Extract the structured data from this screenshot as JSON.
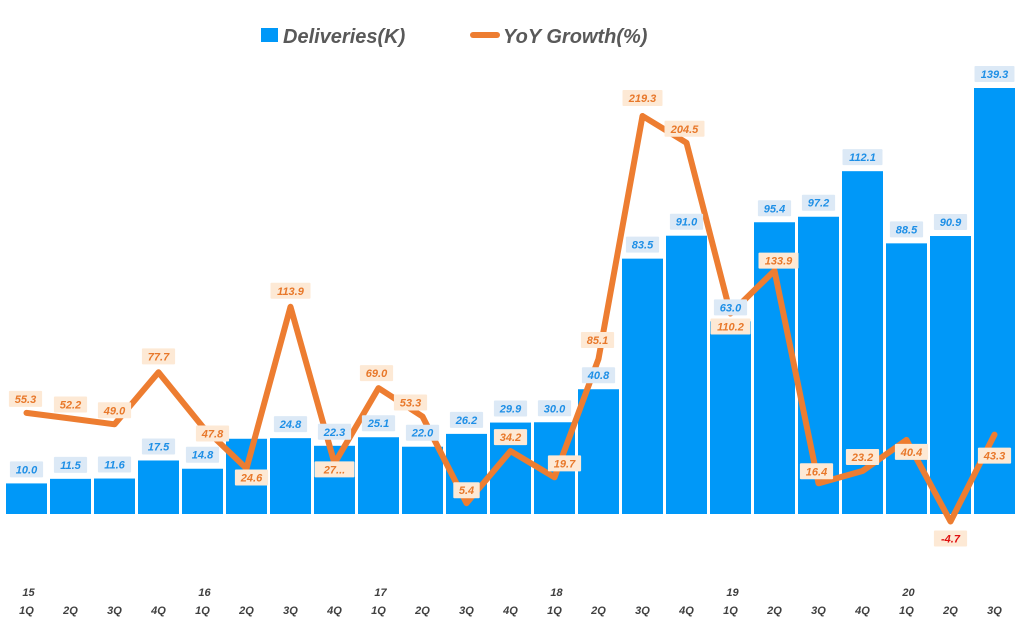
{
  "chart_data": {
    "type": "bar",
    "title": "",
    "xlabel": "",
    "ylabel": "",
    "legend_position": "top-center",
    "categories": [
      "1Q",
      "2Q",
      "3Q",
      "4Q",
      "1Q",
      "2Q",
      "3Q",
      "4Q",
      "1Q",
      "2Q",
      "3Q",
      "4Q",
      "1Q",
      "2Q",
      "3Q",
      "4Q",
      "1Q",
      "2Q",
      "3Q",
      "4Q",
      "1Q",
      "2Q",
      "3Q"
    ],
    "year_labels": [
      {
        "index": 0,
        "label": "15"
      },
      {
        "index": 4,
        "label": "16"
      },
      {
        "index": 8,
        "label": "17"
      },
      {
        "index": 12,
        "label": "18"
      },
      {
        "index": 16,
        "label": "19"
      },
      {
        "index": 20,
        "label": "20"
      }
    ],
    "series": [
      {
        "name": "Deliveries(K)",
        "type": "bar",
        "color": "#0098f8",
        "values": [
          10.0,
          11.5,
          11.6,
          17.5,
          14.8,
          24.6,
          24.8,
          22.3,
          25.1,
          22.0,
          26.2,
          29.9,
          30.0,
          40.8,
          83.5,
          91.0,
          63.0,
          95.4,
          97.2,
          112.1,
          88.5,
          90.9,
          139.3
        ],
        "labels": [
          "10.0",
          "11.5",
          "11.6",
          "17.5",
          "14.8",
          "",
          "24.8",
          "22.3",
          "25.1",
          "22.0",
          "26.2",
          "29.9",
          "30.0",
          "40.8",
          "83.5",
          "91.0",
          "63.0",
          "95.4",
          "97.2",
          "112.1",
          "88.5",
          "90.9",
          "139.3"
        ]
      },
      {
        "name": "YoY Growth(%)",
        "type": "line",
        "color": "#ed7d31",
        "values": [
          55.3,
          52.2,
          49.0,
          77.7,
          47.8,
          24.6,
          113.9,
          27.4,
          69.0,
          53.3,
          5.4,
          34.2,
          19.7,
          85.1,
          219.3,
          204.5,
          110.2,
          133.9,
          16.4,
          23.2,
          40.4,
          -4.7,
          43.3
        ],
        "labels": [
          "55.3",
          "52.2",
          "49.0",
          "77.7",
          "47.8",
          "24.6",
          "113.9",
          "27...",
          "69.0",
          "53.3",
          "5.4",
          "34.2",
          "19.7",
          "85.1",
          "219.3",
          "204.5",
          "110.2",
          "133.9",
          "16.4",
          "23.2",
          "40.4",
          "-4.7",
          "43.3"
        ]
      }
    ]
  }
}
